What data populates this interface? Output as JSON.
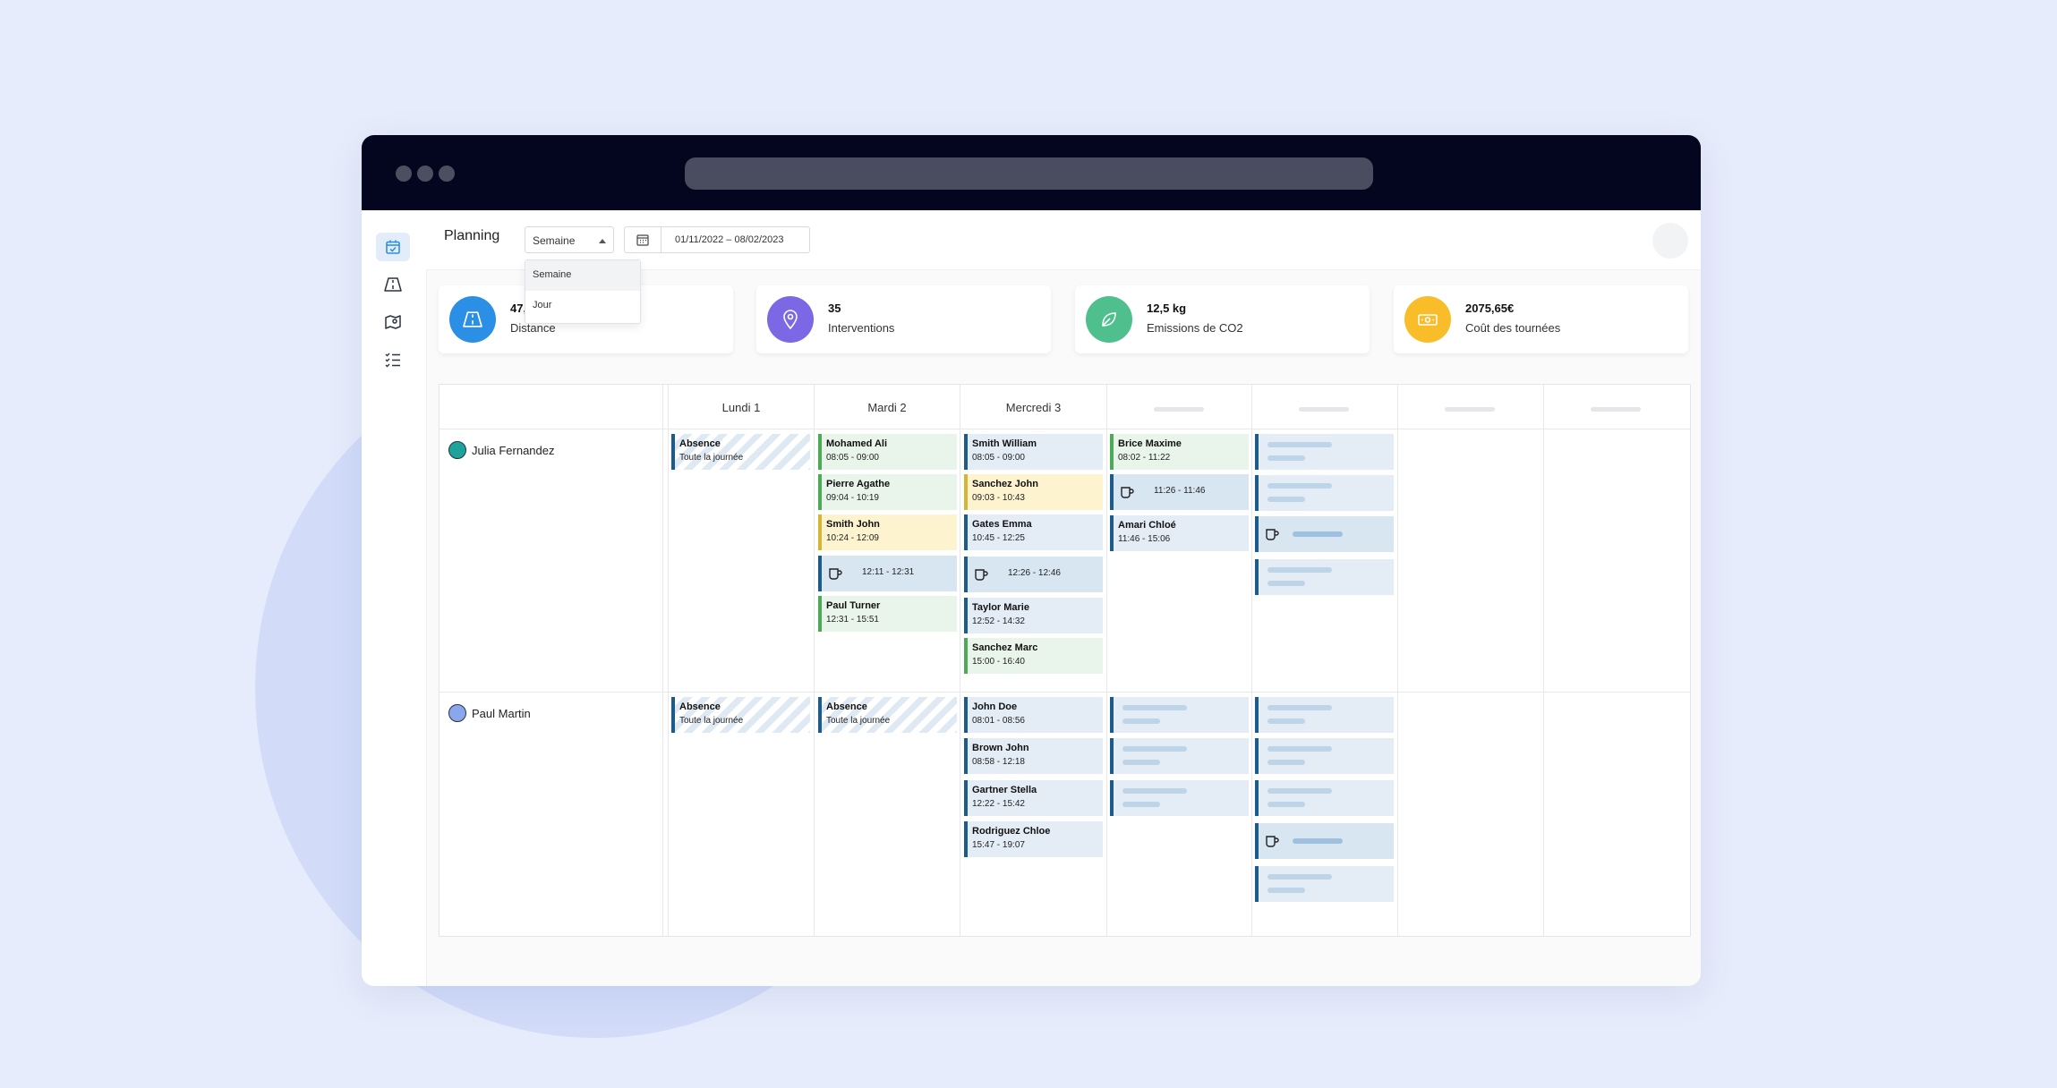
{
  "colors": {
    "accent": "#1d5b8a",
    "distance": "#2c8fe6",
    "interventions": "#7c67e4",
    "co2": "#4fc08d",
    "cost": "#f9bd2a"
  },
  "header": {
    "title": "Planning",
    "view_select": "Semaine",
    "date_range": "01/11/2022 – 08/02/2023"
  },
  "dropdown": {
    "options": [
      "Semaine",
      "Jour"
    ]
  },
  "sidebar": {
    "icons": [
      "calendar-check-icon",
      "road-icon",
      "map-pin-icon",
      "checklist-icon"
    ]
  },
  "kpis": [
    {
      "value": "47,",
      "label": "Distance",
      "icon": "road-icon"
    },
    {
      "value": "35",
      "label": "Interventions",
      "icon": "map-pin-icon"
    },
    {
      "value": "12,5 kg",
      "label": "Emissions de CO2",
      "icon": "leaf-icon"
    },
    {
      "value": "2075,65€",
      "label": "Coût des tournées",
      "icon": "money-icon"
    }
  ],
  "days": [
    "Lundi 1",
    "Mardi 2",
    "Mercredi 3"
  ],
  "people": [
    "Julia Fernandez",
    "Paul Martin"
  ],
  "julia": {
    "mon": [
      {
        "title": "Absence",
        "sub": "Toute la journée"
      }
    ],
    "tue": [
      {
        "title": "Mohamed Ali",
        "sub": "08:05 - 09:00"
      },
      {
        "title": "Pierre Agathe",
        "sub": "09:04 - 10:19"
      },
      {
        "title": "Smith John",
        "sub": "10:24 - 12:09"
      },
      {
        "time": "12:11 - 12:31"
      },
      {
        "title": "Paul Turner",
        "sub": "12:31 - 15:51"
      }
    ],
    "wed": [
      {
        "title": "Smith William",
        "sub": "08:05 - 09:00"
      },
      {
        "title": "Sanchez John",
        "sub": "09:03 - 10:43"
      },
      {
        "title": "Gates Emma",
        "sub": "10:45 - 12:25"
      },
      {
        "time": "12:26 - 12:46"
      },
      {
        "title": "Taylor Marie",
        "sub": "12:52 - 14:32"
      },
      {
        "title": "Sanchez Marc",
        "sub": "15:00 - 16:40"
      }
    ],
    "thu": [
      {
        "title": "Brice Maxime",
        "sub": "08:02 - 11:22"
      },
      {
        "time": "11:26 - 11:46"
      },
      {
        "title": "Amari Chloé",
        "sub": "11:46 - 15:06"
      }
    ]
  },
  "paul": {
    "mon": [
      {
        "title": "Absence",
        "sub": "Toute la journée"
      }
    ],
    "tue": [
      {
        "title": "Absence",
        "sub": "Toute la journée"
      }
    ],
    "wed": [
      {
        "title": "John Doe",
        "sub": "08:01 - 08:56"
      },
      {
        "title": "Brown John",
        "sub": "08:58 - 12:18"
      },
      {
        "title": "Gartner Stella",
        "sub": "12:22 - 15:42"
      },
      {
        "title": "Rodriguez Chloe",
        "sub": "15:47 - 19:07"
      }
    ]
  }
}
